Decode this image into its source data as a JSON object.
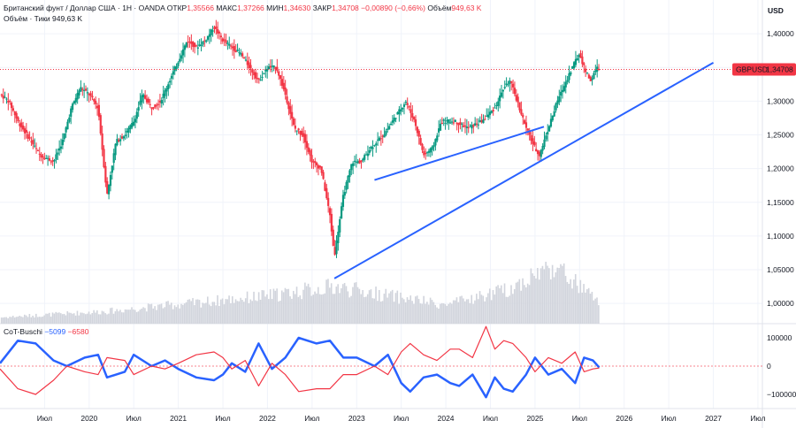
{
  "header": {
    "symbol_desc": "Британский фунт / Доллар США · 1Н · OANDA",
    "open_label": "ОТКР",
    "open_value": "1,35566",
    "high_label": "МАКС",
    "high_value": "1,37266",
    "low_label": "МИН",
    "low_value": "1,34630",
    "close_label": "ЗАКР",
    "close_value": "1,34708",
    "change": "−0,00890 (−0,66%)",
    "volume_label": "Объём",
    "volume_value": "949,63 K",
    "volume_legend_label": "Объём · Тики",
    "volume_legend_value": "949,63 K"
  },
  "indicator_legend": {
    "name": "CoT-Buschi",
    "value1": "−5099",
    "value2": "−6580"
  },
  "currency": "USD",
  "price_badge": {
    "symbol": "GBPUSD",
    "value": "1,34708"
  },
  "colors": {
    "up": "#089981",
    "down": "#f23645",
    "trendline": "#2962ff",
    "volume": "#d1d4dc",
    "cot_blue": "#2962ff",
    "cot_red": "#f23645"
  },
  "chart_data": [
    {
      "type": "candlestick",
      "ylim": [
        0.97,
        1.45
      ],
      "y_ticks": [
        "1,40000",
        "1,35000",
        "1,30000",
        "1,25000",
        "1,20000",
        "1,15000",
        "1,10000",
        "1,05000",
        "1,00000"
      ],
      "y_tick_values": [
        1.4,
        1.35,
        1.3,
        1.25,
        1.2,
        1.15,
        1.1,
        1.05,
        1.0
      ],
      "x_ticks": [
        "Июл",
        "2020",
        "Июл",
        "2021",
        "Июл",
        "2022",
        "Июл",
        "2023",
        "Июл",
        "2024",
        "Июл",
        "2025",
        "Июл",
        "2026",
        "Июл",
        "2027",
        "Июл"
      ],
      "x_tick_times": [
        2019.5,
        2020.0,
        2020.5,
        2021.0,
        2021.5,
        2022.0,
        2022.5,
        2023.0,
        2023.5,
        2024.0,
        2024.5,
        2025.0,
        2025.5,
        2026.0,
        2026.5,
        2027.0,
        2027.5
      ],
      "last_price": 1.34708,
      "close_path": [
        [
          2019.0,
          1.31
        ],
        [
          2019.1,
          1.3
        ],
        [
          2019.2,
          1.27
        ],
        [
          2019.3,
          1.25
        ],
        [
          2019.45,
          1.22
        ],
        [
          2019.6,
          1.21
        ],
        [
          2019.7,
          1.24
        ],
        [
          2019.8,
          1.29
        ],
        [
          2019.9,
          1.32
        ],
        [
          2020.0,
          1.31
        ],
        [
          2020.1,
          1.29
        ],
        [
          2020.2,
          1.16
        ],
        [
          2020.3,
          1.24
        ],
        [
          2020.4,
          1.25
        ],
        [
          2020.5,
          1.27
        ],
        [
          2020.6,
          1.31
        ],
        [
          2020.7,
          1.29
        ],
        [
          2020.8,
          1.3
        ],
        [
          2020.9,
          1.33
        ],
        [
          2021.0,
          1.36
        ],
        [
          2021.1,
          1.39
        ],
        [
          2021.2,
          1.38
        ],
        [
          2021.3,
          1.39
        ],
        [
          2021.4,
          1.41
        ],
        [
          2021.5,
          1.39
        ],
        [
          2021.6,
          1.38
        ],
        [
          2021.7,
          1.37
        ],
        [
          2021.8,
          1.35
        ],
        [
          2021.9,
          1.33
        ],
        [
          2022.0,
          1.35
        ],
        [
          2022.1,
          1.35
        ],
        [
          2022.2,
          1.31
        ],
        [
          2022.3,
          1.26
        ],
        [
          2022.4,
          1.25
        ],
        [
          2022.5,
          1.21
        ],
        [
          2022.6,
          1.2
        ],
        [
          2022.7,
          1.13
        ],
        [
          2022.75,
          1.07
        ],
        [
          2022.85,
          1.16
        ],
        [
          2022.95,
          1.21
        ],
        [
          2023.05,
          1.21
        ],
        [
          2023.15,
          1.23
        ],
        [
          2023.3,
          1.25
        ],
        [
          2023.45,
          1.28
        ],
        [
          2023.55,
          1.3
        ],
        [
          2023.65,
          1.27
        ],
        [
          2023.75,
          1.22
        ],
        [
          2023.85,
          1.23
        ],
        [
          2023.95,
          1.27
        ],
        [
          2024.1,
          1.27
        ],
        [
          2024.25,
          1.26
        ],
        [
          2024.4,
          1.27
        ],
        [
          2024.55,
          1.29
        ],
        [
          2024.65,
          1.32
        ],
        [
          2024.72,
          1.33
        ],
        [
          2024.8,
          1.3
        ],
        [
          2024.9,
          1.26
        ],
        [
          2025.0,
          1.23
        ],
        [
          2025.05,
          1.22
        ],
        [
          2025.15,
          1.26
        ],
        [
          2025.25,
          1.3
        ],
        [
          2025.35,
          1.33
        ],
        [
          2025.45,
          1.36
        ],
        [
          2025.5,
          1.37
        ],
        [
          2025.55,
          1.35
        ],
        [
          2025.62,
          1.33
        ],
        [
          2025.7,
          1.35
        ],
        [
          2025.72,
          1.347
        ]
      ],
      "trendlines": [
        {
          "from": [
            2022.75,
            1.037
          ],
          "to": [
            2027.0,
            1.357
          ]
        },
        {
          "from": [
            2023.2,
            1.183
          ],
          "to": [
            2025.1,
            1.262
          ]
        }
      ]
    },
    {
      "type": "bar",
      "series": [
        {
          "values_by_year": [
            [
              2019.0,
              0.1
            ],
            [
              2020.2,
              0.2
            ],
            [
              2022.0,
              0.45
            ],
            [
              2022.75,
              0.6
            ],
            [
              2024.0,
              0.3
            ],
            [
              2024.7,
              0.55
            ],
            [
              2025.2,
              0.95
            ],
            [
              2025.72,
              0.35
            ]
          ]
        }
      ]
    },
    {
      "type": "line",
      "ylim": [
        -150000,
        150000
      ],
      "y_ticks": [
        "100000",
        "0",
        "−100000"
      ],
      "y_tick_values": [
        100000,
        0,
        -100000
      ],
      "series": [
        {
          "color": "#2962ff",
          "points": [
            [
              2019.0,
              10000
            ],
            [
              2019.2,
              90000
            ],
            [
              2019.4,
              80000
            ],
            [
              2019.6,
              20000
            ],
            [
              2019.75,
              0
            ],
            [
              2019.95,
              30000
            ],
            [
              2020.1,
              40000
            ],
            [
              2020.2,
              -40000
            ],
            [
              2020.4,
              -20000
            ],
            [
              2020.5,
              40000
            ],
            [
              2020.7,
              0
            ],
            [
              2020.85,
              20000
            ],
            [
              2021.0,
              -10000
            ],
            [
              2021.2,
              -40000
            ],
            [
              2021.4,
              -50000
            ],
            [
              2021.5,
              -30000
            ],
            [
              2021.6,
              10000
            ],
            [
              2021.75,
              -20000
            ],
            [
              2021.9,
              80000
            ],
            [
              2022.05,
              -10000
            ],
            [
              2022.2,
              30000
            ],
            [
              2022.35,
              100000
            ],
            [
              2022.55,
              80000
            ],
            [
              2022.7,
              90000
            ],
            [
              2022.85,
              30000
            ],
            [
              2023.0,
              30000
            ],
            [
              2023.2,
              0
            ],
            [
              2023.35,
              40000
            ],
            [
              2023.5,
              -60000
            ],
            [
              2023.6,
              -90000
            ],
            [
              2023.75,
              -40000
            ],
            [
              2023.9,
              -30000
            ],
            [
              2024.05,
              -60000
            ],
            [
              2024.15,
              -70000
            ],
            [
              2024.3,
              -30000
            ],
            [
              2024.45,
              -110000
            ],
            [
              2024.55,
              -40000
            ],
            [
              2024.65,
              -80000
            ],
            [
              2024.75,
              -90000
            ],
            [
              2024.9,
              -30000
            ],
            [
              2025.0,
              30000
            ],
            [
              2025.15,
              -30000
            ],
            [
              2025.3,
              -10000
            ],
            [
              2025.45,
              -60000
            ],
            [
              2025.55,
              30000
            ],
            [
              2025.65,
              20000
            ],
            [
              2025.72,
              -5099
            ]
          ]
        },
        {
          "color": "#f23645",
          "points": [
            [
              2019.0,
              -10000
            ],
            [
              2019.2,
              -80000
            ],
            [
              2019.4,
              -100000
            ],
            [
              2019.6,
              -50000
            ],
            [
              2019.75,
              0
            ],
            [
              2019.95,
              -20000
            ],
            [
              2020.1,
              -30000
            ],
            [
              2020.2,
              30000
            ],
            [
              2020.4,
              20000
            ],
            [
              2020.5,
              -30000
            ],
            [
              2020.7,
              0
            ],
            [
              2020.85,
              -10000
            ],
            [
              2021.0,
              10000
            ],
            [
              2021.2,
              40000
            ],
            [
              2021.4,
              50000
            ],
            [
              2021.5,
              30000
            ],
            [
              2021.6,
              -10000
            ],
            [
              2021.75,
              20000
            ],
            [
              2021.9,
              -70000
            ],
            [
              2022.05,
              10000
            ],
            [
              2022.2,
              -30000
            ],
            [
              2022.35,
              -90000
            ],
            [
              2022.55,
              -80000
            ],
            [
              2022.7,
              -80000
            ],
            [
              2022.85,
              -30000
            ],
            [
              2023.0,
              -30000
            ],
            [
              2023.2,
              0
            ],
            [
              2023.35,
              -30000
            ],
            [
              2023.5,
              50000
            ],
            [
              2023.6,
              80000
            ],
            [
              2023.75,
              40000
            ],
            [
              2023.9,
              20000
            ],
            [
              2024.05,
              60000
            ],
            [
              2024.15,
              60000
            ],
            [
              2024.3,
              30000
            ],
            [
              2024.45,
              140000
            ],
            [
              2024.55,
              60000
            ],
            [
              2024.65,
              90000
            ],
            [
              2024.75,
              80000
            ],
            [
              2024.9,
              30000
            ],
            [
              2025.0,
              -20000
            ],
            [
              2025.15,
              30000
            ],
            [
              2025.3,
              10000
            ],
            [
              2025.45,
              50000
            ],
            [
              2025.55,
              -20000
            ],
            [
              2025.65,
              -10000
            ],
            [
              2025.72,
              -6580
            ]
          ]
        }
      ]
    }
  ]
}
